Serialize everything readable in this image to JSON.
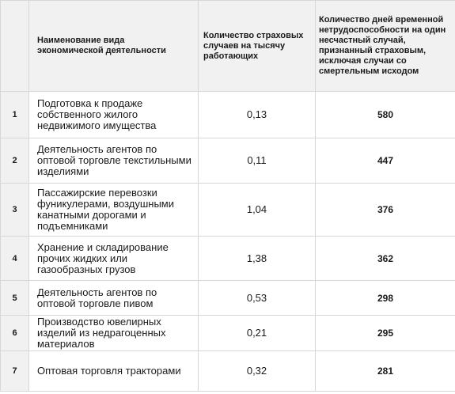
{
  "table": {
    "headers": {
      "num": "",
      "name": "Наименование вида экономической деятельности",
      "cases": "Количество страховых случаев на тысячу работающих",
      "days": "Количество дней временной нетрудоспособности на один несчастный случай, признанный страховым, исключая случаи со смертельным исходом"
    },
    "rows": [
      {
        "num": "1",
        "name": "Подготовка к продаже собственного жилого недвижимого имущества",
        "cases": "0,13",
        "days": "580"
      },
      {
        "num": "2",
        "name": "Деятельность агентов по оптовой торговле текстильными изделиями",
        "cases": "0,11",
        "days": "447"
      },
      {
        "num": "3",
        "name": "Пассажирские перевозки фуникулерами, воздушными канатными дорогами и подъемниками",
        "cases": "1,04",
        "days": "376"
      },
      {
        "num": "4",
        "name": "Хранение и складирование прочих жидких или газообразных грузов",
        "cases": "1,38",
        "days": "362"
      },
      {
        "num": "5",
        "name": "Деятельность агентов по оптовой торговле пивом",
        "cases": "0,53",
        "days": "298"
      },
      {
        "num": "6",
        "name": "Производство ювелирных изделий из недрагоценных материалов",
        "cases": "0,21",
        "days": "295"
      },
      {
        "num": "7",
        "name": "Оптовая торговля тракторами",
        "cases": "0,32",
        "days": "281"
      }
    ]
  }
}
